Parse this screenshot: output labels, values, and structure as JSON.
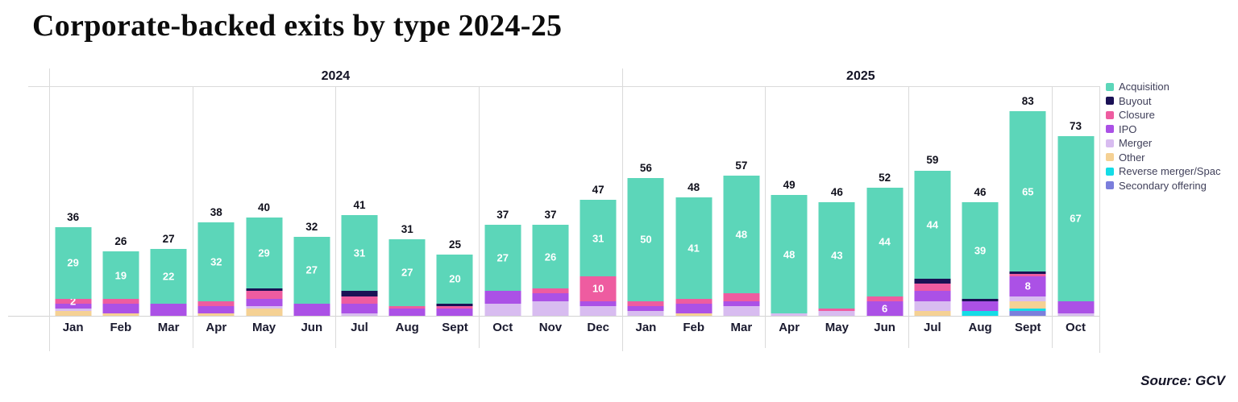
{
  "title": "Corporate-backed exits by type 2024-25",
  "source": "Source: GCV",
  "chart_data": {
    "type": "stacked-bar",
    "title": "Corporate-backed exits by type 2024-25",
    "legend_position": "right",
    "grid": "quarter-separators",
    "year_groups": [
      {
        "label": "2024",
        "months": 12
      },
      {
        "label": "2025",
        "months": 10
      }
    ],
    "categories": [
      "Jan",
      "Feb",
      "Mar",
      "Apr",
      "May",
      "Jun",
      "Jul",
      "Aug",
      "Sept",
      "Oct",
      "Nov",
      "Dec",
      "Jan",
      "Feb",
      "Mar",
      "Apr",
      "May",
      "Jun",
      "Jul",
      "Aug",
      "Sept",
      "Oct"
    ],
    "totals": [
      36,
      26,
      27,
      38,
      40,
      32,
      41,
      31,
      25,
      37,
      37,
      47,
      56,
      48,
      57,
      49,
      46,
      52,
      59,
      46,
      83,
      73
    ],
    "series": [
      {
        "name": "Acquisition",
        "color": "#5CD6B9",
        "values": [
          29,
          19,
          22,
          32,
          29,
          27,
          31,
          27,
          20,
          27,
          26,
          31,
          50,
          41,
          48,
          48,
          43,
          44,
          44,
          39,
          65,
          67
        ]
      },
      {
        "name": "Buyout",
        "color": "#1A1155",
        "values": [
          0,
          0,
          0,
          0,
          1,
          0,
          2,
          0,
          1,
          0,
          0,
          0,
          0,
          0,
          0,
          0,
          0,
          0,
          2,
          1,
          1,
          0
        ]
      },
      {
        "name": "Closure",
        "color": "#EE5CA0",
        "values": [
          2,
          2,
          0,
          2,
          3,
          0,
          3,
          1,
          1,
          0,
          2,
          10,
          2,
          2,
          3,
          0,
          1,
          2,
          3,
          0,
          1,
          0
        ]
      },
      {
        "name": "IPO",
        "color": "#AB51E6",
        "values": [
          2,
          4,
          5,
          3,
          3,
          5,
          4,
          3,
          3,
          5,
          3,
          2,
          2,
          4,
          2,
          0,
          0,
          6,
          4,
          4,
          8,
          5
        ]
      },
      {
        "name": "Merger",
        "color": "#D8BCF0",
        "values": [
          1,
          0,
          0,
          0,
          1,
          0,
          1,
          0,
          0,
          5,
          6,
          4,
          2,
          0,
          4,
          1,
          2,
          0,
          4,
          0,
          2,
          1
        ]
      },
      {
        "name": "Other",
        "color": "#F5D194",
        "values": [
          2,
          1,
          0,
          1,
          3,
          0,
          0,
          0,
          0,
          0,
          0,
          0,
          0,
          1,
          0,
          0,
          0,
          0,
          2,
          0,
          3,
          0
        ]
      },
      {
        "name": "Reverse merger/Spac",
        "color": "#14DCE6",
        "values": [
          0,
          0,
          0,
          0,
          0,
          0,
          0,
          0,
          0,
          0,
          0,
          0,
          0,
          0,
          0,
          0,
          0,
          0,
          0,
          2,
          1,
          0
        ]
      },
      {
        "name": "Secondary offering",
        "color": "#7B7EDC",
        "values": [
          0,
          0,
          0,
          0,
          0,
          0,
          0,
          0,
          0,
          0,
          0,
          0,
          0,
          0,
          0,
          0,
          0,
          0,
          0,
          0,
          2,
          0
        ]
      }
    ],
    "always_labeled_series": "Acquisition",
    "segment_value_labels": [
      "0:Closure",
      "11:Closure",
      "17:IPO",
      "20:IPO"
    ]
  }
}
